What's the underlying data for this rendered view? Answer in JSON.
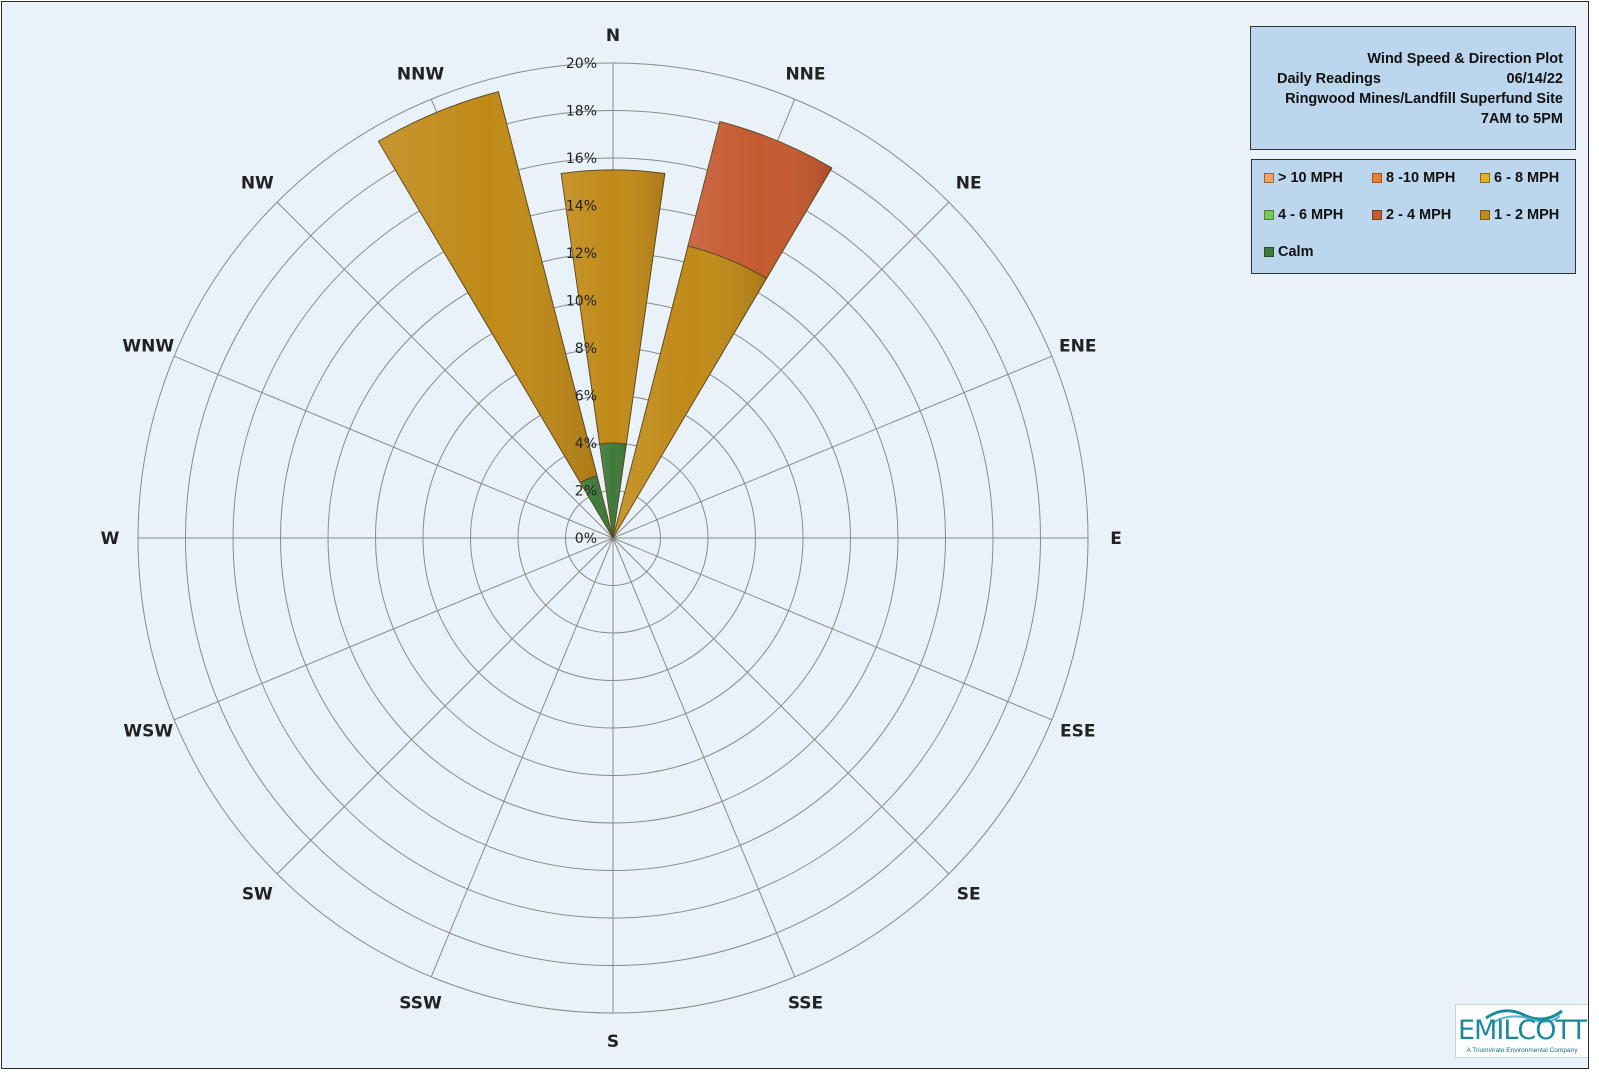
{
  "title": {
    "line1": "Wind Speed & Direction Plot",
    "line2_left": "Daily Readings",
    "line2_right": "06/14/22",
    "line3": "Ringwood Mines/Landfill Superfund Site",
    "line4": "7AM to 5PM"
  },
  "legend": [
    {
      "label": "> 10 MPH",
      "color": "#f0a060"
    },
    {
      "label": "8 -10 MPH",
      "color": "#f07f30"
    },
    {
      "label": "6 - 8 MPH",
      "color": "#e0b020"
    },
    {
      "label": "4 - 6 MPH",
      "color": "#7ec850"
    },
    {
      "label": "2 - 4 MPH",
      "color": "#c55a30"
    },
    {
      "label": "1 - 2 MPH",
      "color": "#c08a18"
    },
    {
      "label": "Calm",
      "color": "#3f7a3a"
    }
  ],
  "logo": {
    "name": "EMILCOTT",
    "tagline": "A Triumvirate Environmental Company"
  },
  "chart_data": {
    "type": "rose",
    "directions": [
      "N",
      "NNE",
      "NE",
      "ENE",
      "E",
      "ESE",
      "SE",
      "SSE",
      "S",
      "SSW",
      "SW",
      "WSW",
      "W",
      "WNW",
      "NW",
      "NNW"
    ],
    "rings": [
      "0%",
      "2%",
      "4%",
      "6%",
      "8%",
      "10%",
      "12%",
      "14%",
      "16%",
      "18%",
      "20%"
    ],
    "rmax": 20,
    "series": [
      {
        "name": "Calm",
        "color": "#3f7a3a",
        "values": [
          4.0,
          0,
          0,
          0,
          0,
          0,
          0,
          0,
          0,
          0,
          0,
          0,
          0,
          0,
          0,
          2.7
        ]
      },
      {
        "name": "1 - 2 MPH",
        "color": "#c08a18",
        "values": [
          11.5,
          12.7,
          0,
          0,
          0,
          0,
          0,
          0,
          0,
          0,
          0,
          0,
          0,
          0,
          0,
          16.7
        ]
      },
      {
        "name": "2 - 4 MPH",
        "color": "#c55a30",
        "values": [
          0,
          5.4,
          0,
          0,
          0,
          0,
          0,
          0,
          0,
          0,
          0,
          0,
          0,
          0,
          0,
          0
        ]
      }
    ]
  }
}
